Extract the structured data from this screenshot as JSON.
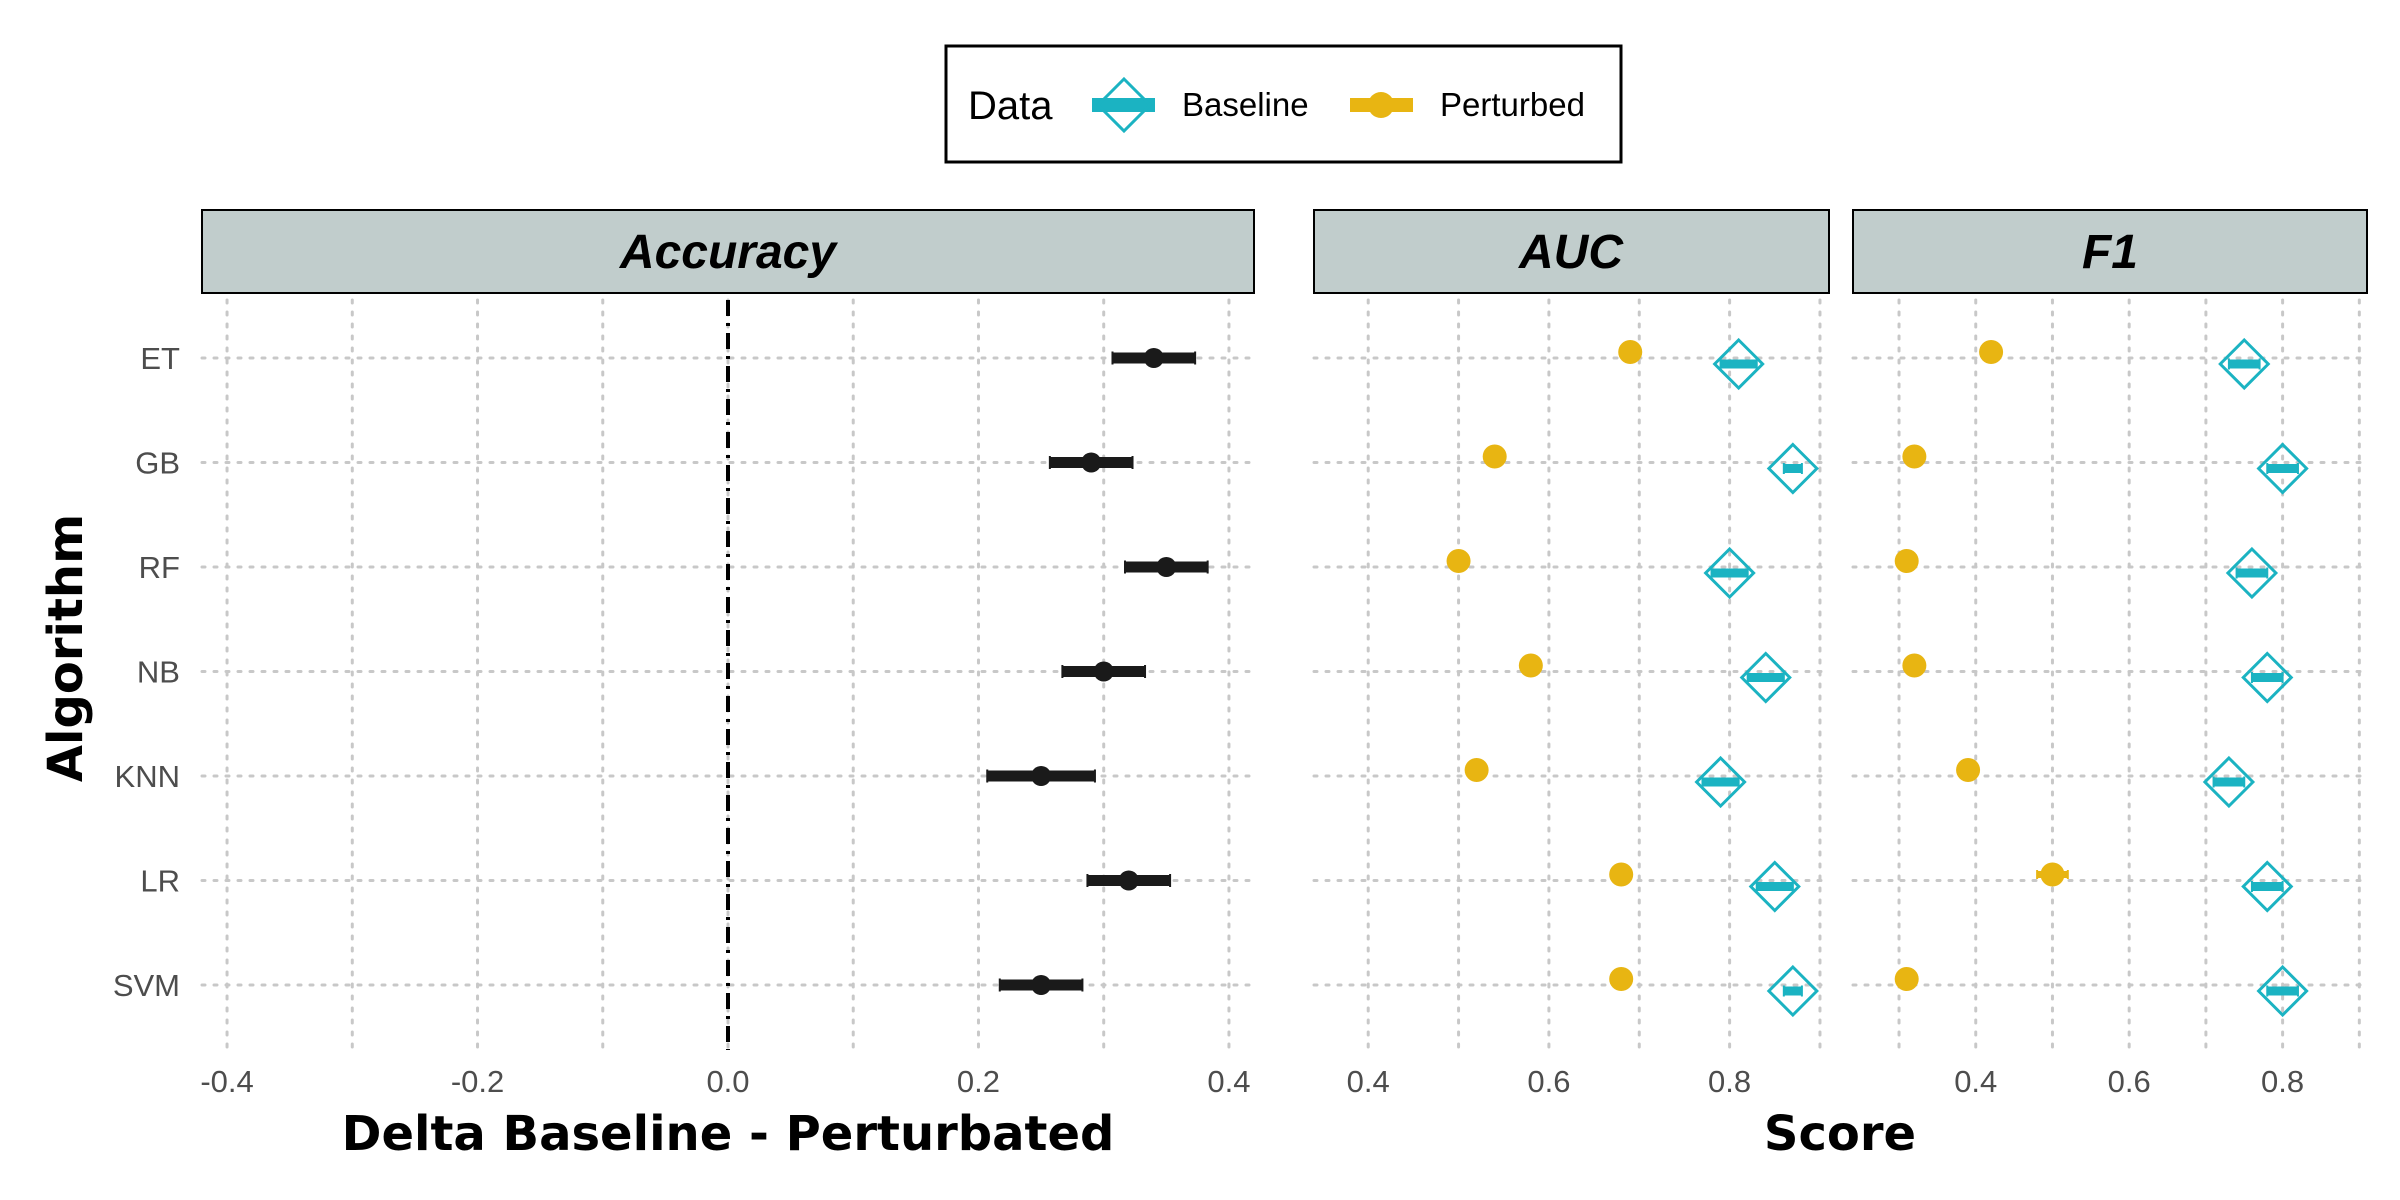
{
  "chart_data": [
    {
      "type": "scatter",
      "panel": "Accuracy",
      "title": "Accuracy",
      "xlabel": "Delta Baseline - Perturbated",
      "ylabel": "Algorithm",
      "xlim": [
        -0.42,
        0.42
      ],
      "x_ticks": [
        "-0.4",
        "-0.2",
        "0.0",
        "0.2",
        "0.4"
      ],
      "reference_line": 0.0,
      "categories": [
        "ET",
        "GB",
        "RF",
        "NB",
        "KNN",
        "LR",
        "SVM"
      ],
      "series": [
        {
          "values": [
            0.34,
            0.29,
            0.35,
            0.3,
            0.25,
            0.32,
            0.25
          ],
          "lower": [
            0.307,
            0.257,
            0.317,
            0.267,
            0.207,
            0.287,
            0.217
          ],
          "upper": [
            0.373,
            0.323,
            0.383,
            0.333,
            0.293,
            0.353,
            0.283
          ],
          "color": "#1a1a1a"
        }
      ],
      "grid": true
    },
    {
      "type": "scatter",
      "panel": "AUC",
      "title": "AUC",
      "xlabel": "Score",
      "xlim": [
        0.34,
        0.91
      ],
      "x_ticks": [
        "0.4",
        "0.6",
        "0.8"
      ],
      "categories": [
        "ET",
        "GB",
        "RF",
        "NB",
        "KNN",
        "LR",
        "SVM"
      ],
      "series": [
        {
          "name": "Baseline",
          "values": [
            0.81,
            0.87,
            0.8,
            0.84,
            0.79,
            0.85,
            0.87
          ],
          "lower": [
            0.79,
            0.86,
            0.78,
            0.82,
            0.77,
            0.83,
            0.86
          ],
          "upper": [
            0.83,
            0.88,
            0.82,
            0.86,
            0.81,
            0.87,
            0.88
          ],
          "color": "#1bb3c2"
        },
        {
          "name": "Perturbed",
          "values": [
            0.69,
            0.54,
            0.5,
            0.58,
            0.52,
            0.68,
            0.68
          ],
          "color": "#e8b512"
        }
      ],
      "grid": true
    },
    {
      "type": "scatter",
      "panel": "F1",
      "title": "F1",
      "xlabel": "Score",
      "xlim": [
        0.24,
        0.91
      ],
      "x_ticks": [
        "0.4",
        "0.6",
        "0.8"
      ],
      "categories": [
        "ET",
        "GB",
        "RF",
        "NB",
        "KNN",
        "LR",
        "SVM"
      ],
      "series": [
        {
          "name": "Baseline",
          "values": [
            0.75,
            0.8,
            0.76,
            0.78,
            0.73,
            0.78,
            0.8
          ],
          "lower": [
            0.73,
            0.78,
            0.74,
            0.76,
            0.71,
            0.76,
            0.78
          ],
          "upper": [
            0.77,
            0.82,
            0.78,
            0.8,
            0.75,
            0.8,
            0.82
          ],
          "color": "#1bb3c2"
        },
        {
          "name": "Perturbed",
          "values": [
            0.42,
            0.32,
            0.31,
            0.32,
            0.39,
            0.5,
            0.31
          ],
          "lower": [
            null,
            null,
            null,
            null,
            null,
            0.48,
            null
          ],
          "upper": [
            null,
            null,
            null,
            null,
            null,
            0.52,
            null
          ],
          "color": "#e8b512"
        }
      ],
      "grid": true
    }
  ],
  "legend": {
    "title": "Data",
    "items": [
      {
        "label": "Baseline",
        "color": "#1bb3c2",
        "shape": "diamond-icon"
      },
      {
        "label": "Perturbed",
        "color": "#e8b512",
        "shape": "circle-icon"
      }
    ],
    "position": "top"
  },
  "colors": {
    "strip_fill": "#c1cdcc",
    "baseline": "#1bb3c2",
    "perturbed": "#e8b512",
    "delta": "#1a1a1a"
  }
}
